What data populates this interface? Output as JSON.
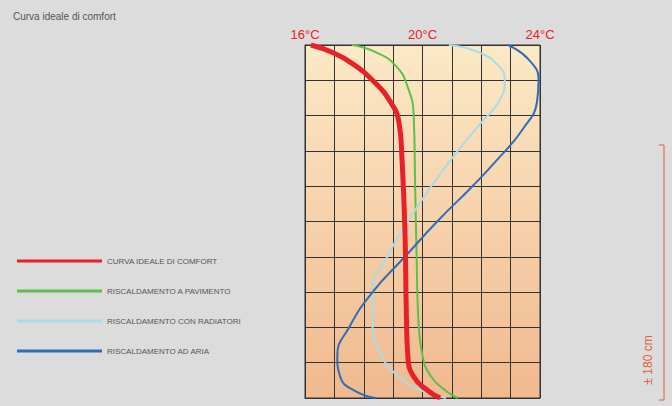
{
  "chart_data": {
    "type": "line",
    "title": "Curva ideale di comfort",
    "xlim": [
      16,
      24
    ],
    "xticks": [
      {
        "value": 16,
        "label": "16°C"
      },
      {
        "value": 20,
        "label": "20°C"
      },
      {
        "value": 24,
        "label": "24°C"
      }
    ],
    "ylim": [
      0,
      250
    ],
    "yticks": [
      0,
      50,
      100,
      150,
      200,
      250
    ],
    "tick_labels": "x",
    "grid": true,
    "legend": "left",
    "annotations": [
      "± 180 cm"
    ],
    "series": [
      {
        "name": "CURVA IDEALE DI COMFORT",
        "color": "#e8202a",
        "x": [
          16.2,
          16.9,
          17.6,
          18.3,
          18.9,
          19.2,
          19.3,
          19.4,
          19.45,
          19.5,
          19.7,
          20.2,
          20.6
        ],
        "values": [
          250,
          245,
          237,
          225,
          210,
          195,
          170,
          120,
          60,
          30,
          15,
          5,
          0
        ]
      },
      {
        "name": "RISCALDAMENTO A PAVIMENTO",
        "color": "#5cc04a",
        "x": [
          17.6,
          18.4,
          19.1,
          19.5,
          19.7,
          19.75,
          19.8,
          19.85,
          20.0,
          20.3,
          20.8,
          21.2
        ],
        "values": [
          250,
          245,
          235,
          220,
          200,
          150,
          100,
          60,
          30,
          15,
          5,
          0
        ]
      },
      {
        "name": "RISCALDAMENTO CON RADIATORI",
        "color": "#a8dce8",
        "x": [
          20.9,
          21.9,
          22.6,
          22.8,
          22.6,
          22.0,
          21.2,
          20.3,
          19.5,
          18.8,
          18.3,
          18.3,
          18.6,
          19.2,
          20.0,
          20.8
        ],
        "values": [
          250,
          245,
          235,
          225,
          210,
          195,
          175,
          150,
          125,
          100,
          75,
          50,
          30,
          15,
          5,
          0
        ]
      },
      {
        "name": "RISCALDAMENTO AD ARIA",
        "color": "#2f6db8",
        "x": [
          22.9,
          23.6,
          23.95,
          23.9,
          23.4,
          22.6,
          21.7,
          20.5,
          19.4,
          18.3,
          17.5,
          17.1,
          17.2,
          17.7,
          18.4
        ],
        "values": [
          250,
          240,
          225,
          210,
          190,
          170,
          150,
          125,
          100,
          75,
          50,
          30,
          15,
          5,
          0
        ]
      }
    ]
  }
}
